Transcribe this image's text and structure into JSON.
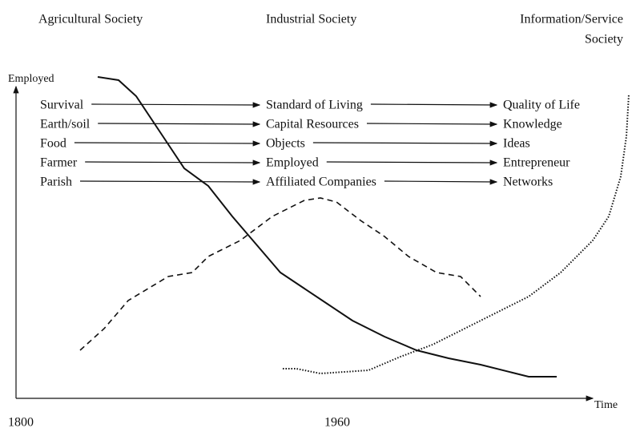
{
  "header": {
    "left": "Agricultural Society",
    "middle": "Industrial Society",
    "right": [
      "Information/Service",
      "Society"
    ]
  },
  "axes": {
    "y_label": "Employed",
    "x_label": "Time",
    "x_start": "1800",
    "x_middle": "1960"
  },
  "rows": [
    [
      "Survival",
      "Standard of Living",
      "Quality of Life"
    ],
    [
      "Earth/soil",
      "Capital Resources",
      "Knowledge"
    ],
    [
      "Food",
      "Objects",
      "Ideas"
    ],
    [
      "Farmer",
      "Employed",
      "Entrepreneur"
    ],
    [
      "Parish",
      "Affiliated Companies",
      "Networks"
    ]
  ]
}
